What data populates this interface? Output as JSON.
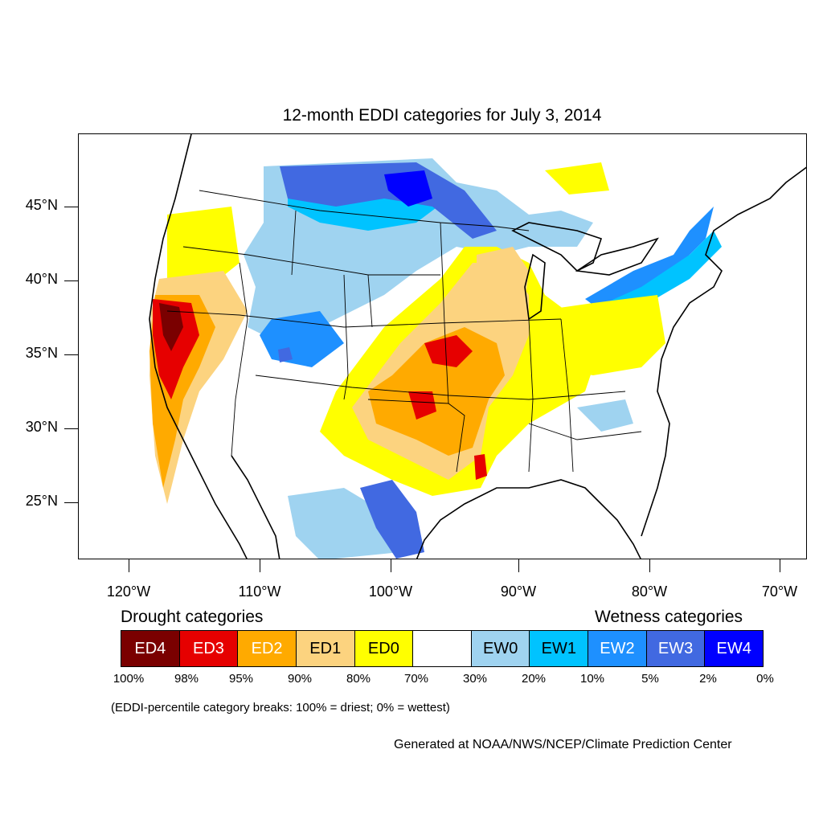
{
  "title": "12-month EDDI categories for July 3, 2014",
  "lat_labels": [
    "45°N",
    "40°N",
    "35°N",
    "30°N",
    "25°N"
  ],
  "lon_labels": [
    "120°W",
    "110°W",
    "100°W",
    "90°W",
    "80°W",
    "70°W"
  ],
  "drought_heading": "Drought categories",
  "wetness_heading": "Wetness categories",
  "categories": [
    {
      "label": "ED4",
      "color": "#7a0000",
      "text_color": "#ffffff"
    },
    {
      "label": "ED3",
      "color": "#e60000",
      "text_color": "#ffffff"
    },
    {
      "label": "ED2",
      "color": "#ffaa00",
      "text_color": "#ffffff"
    },
    {
      "label": "ED1",
      "color": "#fcd37f",
      "text_color": "#000000"
    },
    {
      "label": "ED0",
      "color": "#ffff00",
      "text_color": "#000000"
    },
    {
      "label": "",
      "color": "#ffffff",
      "text_color": "#000000"
    },
    {
      "label": "EW0",
      "color": "#9fd3f0",
      "text_color": "#000000"
    },
    {
      "label": "EW1",
      "color": "#00c3ff",
      "text_color": "#000000"
    },
    {
      "label": "EW2",
      "color": "#1e90ff",
      "text_color": "#ffffff"
    },
    {
      "label": "EW3",
      "color": "#4169e1",
      "text_color": "#ffffff"
    },
    {
      "label": "EW4",
      "color": "#0000ff",
      "text_color": "#ffffff"
    }
  ],
  "percent_breaks": [
    "100%",
    "98%",
    "95%",
    "90%",
    "80%",
    "70%",
    "30%",
    "20%",
    "10%",
    "5%",
    "2%",
    "0%"
  ],
  "note": "(EDDI-percentile category breaks: 100% = driest; 0% = wettest)",
  "credit": "Generated at NOAA/NWS/NCEP/Climate Prediction Center"
}
